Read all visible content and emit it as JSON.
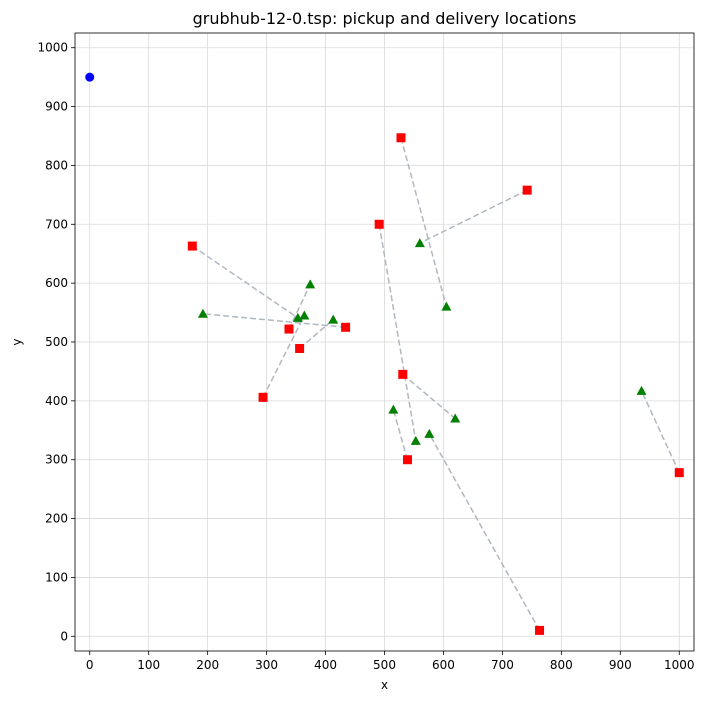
{
  "chart_data": {
    "type": "scatter",
    "title": "grubhub-12-0.tsp: pickup and delivery locations",
    "xlabel": "x",
    "ylabel": "y",
    "xlim": [
      -25,
      1025
    ],
    "ylim": [
      -25,
      1025
    ],
    "xticks": [
      0,
      100,
      200,
      300,
      400,
      500,
      600,
      700,
      800,
      900,
      1000
    ],
    "yticks": [
      0,
      100,
      200,
      300,
      400,
      500,
      600,
      700,
      800,
      900,
      1000
    ],
    "grid": true,
    "colors": {
      "depot": "#0000ff",
      "pickup": "#ff0000",
      "delivery": "#008000",
      "link": "#b0b8c0",
      "grid": "#d9d9d9"
    },
    "depot": {
      "x": 0,
      "y": 950
    },
    "pickups": [
      {
        "x": 528,
        "y": 847
      },
      {
        "x": 742,
        "y": 758
      },
      {
        "x": 174,
        "y": 663
      },
      {
        "x": 491,
        "y": 700
      },
      {
        "x": 338,
        "y": 522
      },
      {
        "x": 434,
        "y": 525
      },
      {
        "x": 356,
        "y": 489
      },
      {
        "x": 294,
        "y": 406
      },
      {
        "x": 531,
        "y": 445
      },
      {
        "x": 539,
        "y": 300
      },
      {
        "x": 1000,
        "y": 278
      },
      {
        "x": 763,
        "y": 10
      }
    ],
    "deliveries": [
      {
        "x": 605,
        "y": 560
      },
      {
        "x": 560,
        "y": 668
      },
      {
        "x": 353,
        "y": 541
      },
      {
        "x": 553,
        "y": 332
      },
      {
        "x": 374,
        "y": 598
      },
      {
        "x": 192,
        "y": 548
      },
      {
        "x": 413,
        "y": 538
      },
      {
        "x": 364,
        "y": 545
      },
      {
        "x": 620,
        "y": 370
      },
      {
        "x": 515,
        "y": 385
      },
      {
        "x": 936,
        "y": 417
      },
      {
        "x": 576,
        "y": 344
      }
    ]
  }
}
